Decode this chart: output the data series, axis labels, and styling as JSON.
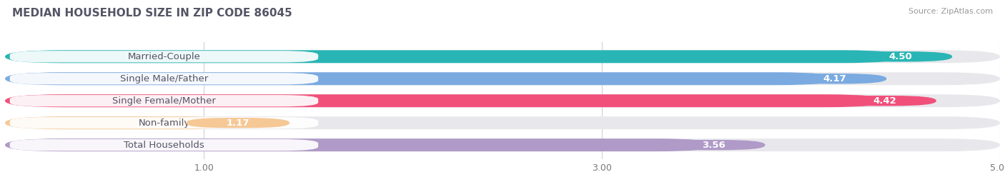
{
  "title": "MEDIAN HOUSEHOLD SIZE IN ZIP CODE 86045",
  "source": "Source: ZipAtlas.com",
  "categories": [
    "Married-Couple",
    "Single Male/Father",
    "Single Female/Mother",
    "Non-family",
    "Total Households"
  ],
  "values": [
    4.5,
    4.17,
    4.42,
    1.17,
    3.56
  ],
  "bar_colors": [
    "#29b5b5",
    "#7aaae0",
    "#f0507a",
    "#f5c896",
    "#b09ac8"
  ],
  "bar_bg_color": "#e8e8ec",
  "xlim": [
    0,
    5.0
  ],
  "xticks": [
    1.0,
    3.0,
    5.0
  ],
  "label_fontsize": 9.5,
  "value_fontsize": 9.5,
  "title_fontsize": 11,
  "bar_height": 0.58,
  "background_color": "#ffffff",
  "title_color": "#555566",
  "source_color": "#999999",
  "label_text_color": "#555566",
  "value_text_color": "#ffffff"
}
